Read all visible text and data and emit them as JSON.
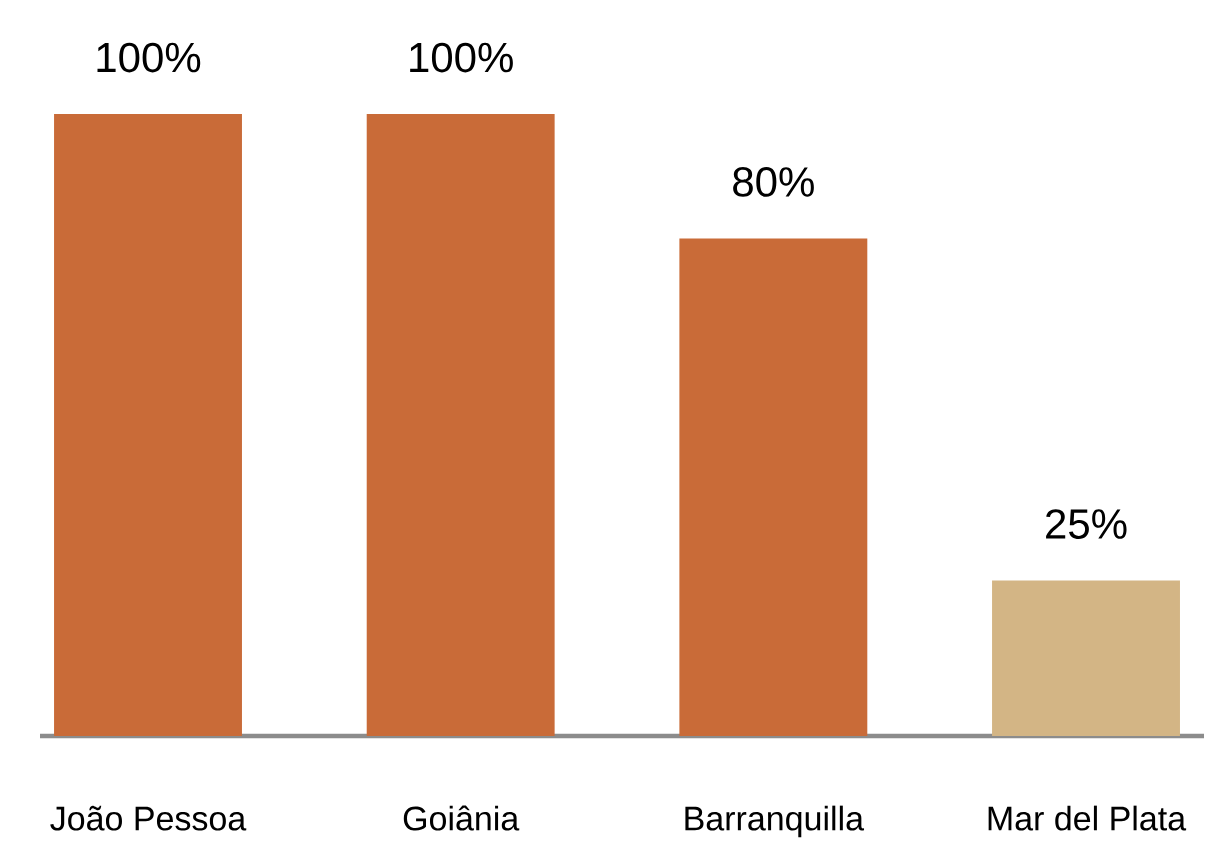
{
  "chart_data": {
    "type": "bar",
    "categories": [
      "João Pessoa",
      "Goiânia",
      "Barranquilla",
      "Mar del Plata"
    ],
    "values": [
      100,
      100,
      80,
      25
    ],
    "value_labels": [
      "100%",
      "100%",
      "80%",
      "25%"
    ],
    "colors": [
      "#c96b38",
      "#c96b38",
      "#c96b38",
      "#d3b585"
    ]
  }
}
